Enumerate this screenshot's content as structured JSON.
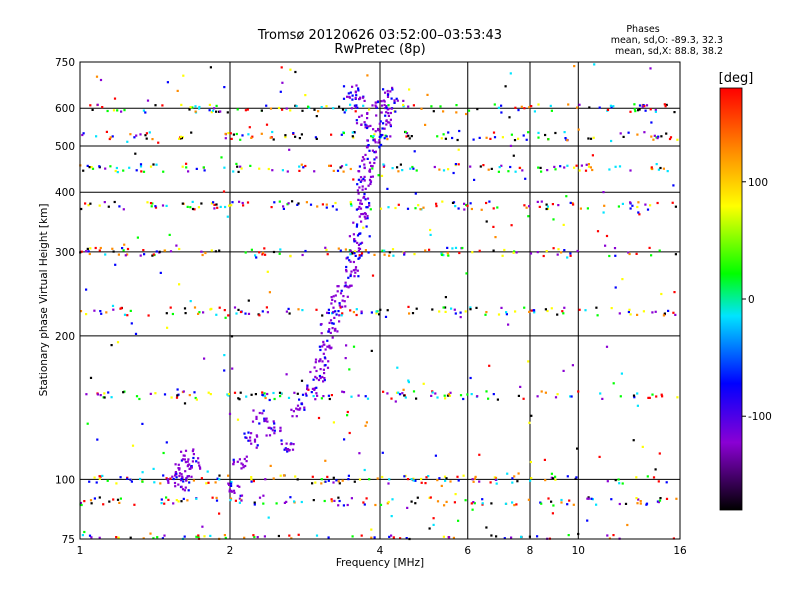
{
  "header": {
    "title": "Tromsø 20120626 03:52:00–03:53:43",
    "subtitle": "RwPretec (8p)"
  },
  "phases_note": {
    "heading": "Phases",
    "line1": "mean, sd,O: -89.3, 32.3",
    "line2": "mean, sd,X: 88.8, 38.2"
  },
  "chart_data": {
    "type": "scatter",
    "title": "Tromsø 20120626 03:52:00–03:53:43",
    "subtitle": "RwPretec (8p)",
    "xlabel": "Frequency [MHz]",
    "ylabel": "Stationary phase Virtual Height [km]",
    "x_scale": "log",
    "y_scale": "log",
    "xlim": [
      1,
      16
    ],
    "ylim": [
      75,
      750
    ],
    "x_ticks": [
      1,
      2,
      4,
      6,
      8,
      10,
      16
    ],
    "y_ticks": [
      75,
      100,
      200,
      300,
      400,
      500,
      600,
      750
    ],
    "grid": true,
    "colorbar": {
      "label": "[deg]",
      "range": [
        -180,
        180
      ],
      "ticks": [
        100,
        0,
        -100
      ]
    },
    "o_trace": {
      "phase_deg": -100,
      "points": [
        [
          1.55,
          100
        ],
        [
          1.6,
          105
        ],
        [
          1.65,
          112
        ],
        [
          1.7,
          108
        ],
        [
          1.62,
          98
        ],
        [
          2.05,
          95
        ],
        [
          2.1,
          108
        ],
        [
          2.2,
          122
        ],
        [
          2.3,
          135
        ],
        [
          2.45,
          128
        ],
        [
          2.6,
          118
        ],
        [
          2.75,
          140
        ],
        [
          2.9,
          152
        ],
        [
          3.0,
          165
        ],
        [
          3.05,
          175
        ],
        [
          3.1,
          190
        ],
        [
          3.15,
          205
        ],
        [
          3.2,
          220
        ],
        [
          3.3,
          235
        ],
        [
          3.4,
          250
        ],
        [
          3.5,
          270
        ],
        [
          3.55,
          295
        ],
        [
          3.6,
          320
        ],
        [
          3.65,
          350
        ],
        [
          3.7,
          380
        ],
        [
          3.72,
          410
        ],
        [
          3.75,
          440
        ],
        [
          3.8,
          470
        ],
        [
          3.9,
          500
        ],
        [
          4.0,
          530
        ],
        [
          4.1,
          560
        ],
        [
          4.15,
          600
        ],
        [
          4.2,
          640
        ],
        [
          3.7,
          560
        ],
        [
          3.6,
          620
        ],
        [
          3.5,
          650
        ],
        [
          3.9,
          600
        ]
      ]
    },
    "band_heights_km": [
      75,
      90,
      100,
      150,
      225,
      300,
      375,
      450,
      525,
      600
    ]
  },
  "colors": {
    "colorbar_stops": [
      "#000000",
      "#8a00d4",
      "#0000ff",
      "#00e4ff",
      "#00ff00",
      "#ffff00",
      "#ff8c00",
      "#ff0000"
    ]
  }
}
